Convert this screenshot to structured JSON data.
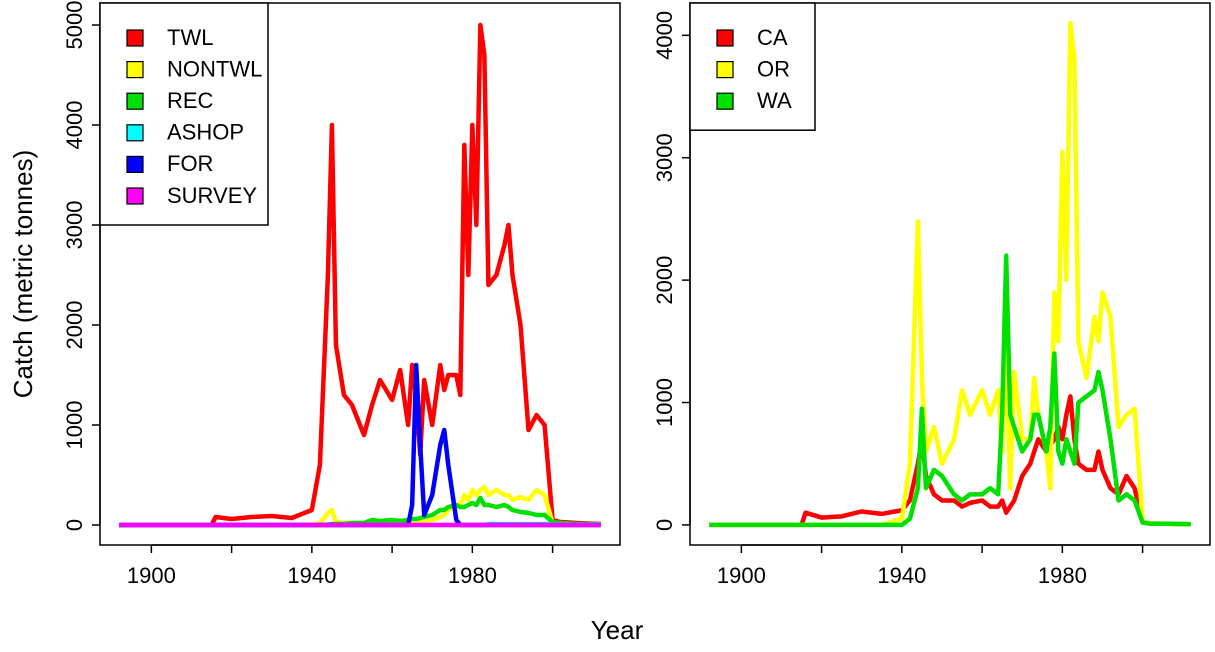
{
  "xlabel": "Year",
  "chart_data": [
    {
      "type": "line",
      "ylabel": "Catch (metric tonnes)",
      "legend": "topleft",
      "x": [
        1892,
        1915,
        1916,
        1920,
        1925,
        1930,
        1935,
        1940,
        1942,
        1944,
        1945,
        1946,
        1948,
        1950,
        1953,
        1955,
        1957,
        1960,
        1962,
        1964,
        1965,
        1966,
        1967,
        1968,
        1970,
        1972,
        1973,
        1974,
        1976,
        1977,
        1978,
        1979,
        1980,
        1981,
        1982,
        1983,
        1984,
        1986,
        1988,
        1989,
        1990,
        1992,
        1994,
        1996,
        1998,
        2000,
        2002,
        2006,
        2012
      ],
      "xlim": [
        1887.2,
        2016.8
      ],
      "xticks": [
        1900,
        {
          "value": 1920,
          "label": null
        },
        1940,
        {
          "value": 1960,
          "label": null
        },
        1980,
        {
          "value": 2000,
          "label": null
        }
      ],
      "ylim": [
        -200,
        5220
      ],
      "yticks": [
        0,
        1000,
        2000,
        3000,
        4000,
        5000
      ],
      "series": [
        {
          "name": "TWL",
          "color": "#ff0000",
          "values": [
            0,
            0,
            80,
            60,
            80,
            90,
            70,
            150,
            600,
            2500,
            4000,
            1800,
            1300,
            1200,
            900,
            1200,
            1450,
            1250,
            1550,
            1000,
            1600,
            1300,
            700,
            1450,
            1000,
            1600,
            1350,
            1500,
            1500,
            1300,
            3800,
            2500,
            4000,
            3000,
            5000,
            4700,
            2400,
            2500,
            2800,
            3000,
            2500,
            2000,
            950,
            1100,
            1000,
            50,
            30,
            20,
            10
          ]
        },
        {
          "name": "NONTWL",
          "color": "#ffff00",
          "values": [
            0,
            0,
            0,
            0,
            0,
            0,
            0,
            0,
            20,
            120,
            150,
            30,
            20,
            20,
            20,
            20,
            20,
            20,
            20,
            20,
            20,
            20,
            30,
            30,
            50,
            80,
            100,
            150,
            200,
            200,
            300,
            250,
            350,
            300,
            350,
            380,
            300,
            350,
            300,
            300,
            250,
            280,
            250,
            350,
            300,
            20,
            10,
            5,
            5
          ]
        },
        {
          "name": "REC",
          "color": "#00e000",
          "values": [
            0,
            0,
            0,
            0,
            0,
            0,
            0,
            0,
            0,
            5,
            10,
            10,
            10,
            20,
            20,
            50,
            40,
            50,
            40,
            50,
            60,
            60,
            70,
            80,
            100,
            150,
            150,
            180,
            200,
            180,
            180,
            200,
            220,
            200,
            270,
            200,
            200,
            180,
            200,
            180,
            150,
            130,
            120,
            100,
            100,
            30,
            20,
            10,
            10
          ]
        },
        {
          "name": "ASHOP",
          "color": "#00ffff",
          "values": [
            0,
            0,
            0,
            0,
            0,
            0,
            0,
            0,
            0,
            0,
            0,
            0,
            0,
            0,
            0,
            0,
            0,
            0,
            0,
            0,
            0,
            0,
            0,
            0,
            0,
            0,
            0,
            0,
            0,
            0,
            0,
            0,
            0,
            0,
            0,
            0,
            10,
            10,
            10,
            10,
            10,
            10,
            10,
            10,
            10,
            5,
            5,
            5,
            5
          ]
        },
        {
          "name": "FOR",
          "color": "#0000ff",
          "values": [
            0,
            0,
            0,
            0,
            0,
            0,
            0,
            0,
            0,
            0,
            0,
            0,
            0,
            0,
            0,
            0,
            0,
            0,
            0,
            0,
            200,
            1600,
            800,
            100,
            300,
            800,
            950,
            600,
            50,
            0,
            0,
            0,
            0,
            0,
            0,
            0,
            0,
            0,
            0,
            0,
            0,
            0,
            0,
            0,
            0,
            0,
            0,
            0,
            0
          ]
        },
        {
          "name": "SURVEY",
          "color": "#ff00ff",
          "values": [
            0,
            0,
            0,
            0,
            0,
            0,
            0,
            0,
            0,
            0,
            0,
            0,
            0,
            0,
            0,
            0,
            0,
            0,
            0,
            0,
            0,
            0,
            0,
            0,
            0,
            0,
            0,
            0,
            0,
            0,
            0,
            0,
            0,
            0,
            0,
            0,
            0,
            0,
            0,
            0,
            0,
            0,
            0,
            0,
            0,
            0,
            0,
            0,
            0
          ]
        }
      ]
    },
    {
      "type": "line",
      "legend": "topleft",
      "x": [
        1892,
        1915,
        1916,
        1920,
        1925,
        1930,
        1935,
        1940,
        1942,
        1944,
        1945,
        1946,
        1948,
        1950,
        1953,
        1955,
        1957,
        1960,
        1962,
        1964,
        1965,
        1966,
        1967,
        1968,
        1970,
        1972,
        1973,
        1974,
        1976,
        1977,
        1978,
        1979,
        1980,
        1981,
        1982,
        1983,
        1984,
        1986,
        1988,
        1989,
        1990,
        1992,
        1994,
        1996,
        1998,
        2000,
        2002,
        2006,
        2012
      ],
      "xlim": [
        1887.2,
        2016.8
      ],
      "xticks": [
        1900,
        {
          "value": 1920,
          "label": null
        },
        1940,
        {
          "value": 1960,
          "label": null
        },
        1980,
        {
          "value": 2000,
          "label": null
        }
      ],
      "ylim": [
        -164,
        4264
      ],
      "yticks": [
        0,
        1000,
        2000,
        3000,
        4000
      ],
      "series": [
        {
          "name": "CA",
          "color": "#ff0000",
          "values": [
            0,
            0,
            100,
            60,
            70,
            110,
            90,
            120,
            200,
            500,
            700,
            400,
            250,
            200,
            200,
            150,
            180,
            200,
            150,
            150,
            200,
            100,
            150,
            200,
            400,
            500,
            600,
            700,
            600,
            650,
            700,
            800,
            700,
            900,
            1050,
            700,
            500,
            450,
            450,
            600,
            450,
            300,
            250,
            400,
            300,
            20,
            10,
            10,
            5
          ]
        },
        {
          "name": "OR",
          "color": "#ffff00",
          "values": [
            0,
            0,
            0,
            0,
            0,
            0,
            0,
            50,
            500,
            2480,
            1200,
            600,
            800,
            500,
            700,
            1100,
            900,
            1100,
            900,
            1100,
            600,
            1500,
            300,
            1250,
            700,
            700,
            1200,
            900,
            600,
            300,
            1900,
            1500,
            3050,
            2000,
            4100,
            3800,
            1500,
            1200,
            1700,
            1500,
            1900,
            1700,
            800,
            900,
            950,
            30,
            15,
            10,
            5
          ]
        },
        {
          "name": "WA",
          "color": "#00e000",
          "values": [
            0,
            0,
            0,
            0,
            0,
            0,
            0,
            0,
            50,
            300,
            950,
            300,
            450,
            400,
            250,
            200,
            250,
            250,
            300,
            250,
            900,
            2200,
            900,
            800,
            600,
            700,
            900,
            900,
            600,
            800,
            1400,
            600,
            500,
            700,
            600,
            500,
            1000,
            1050,
            1100,
            1250,
            1100,
            700,
            200,
            250,
            200,
            20,
            10,
            10,
            5
          ]
        }
      ]
    }
  ]
}
